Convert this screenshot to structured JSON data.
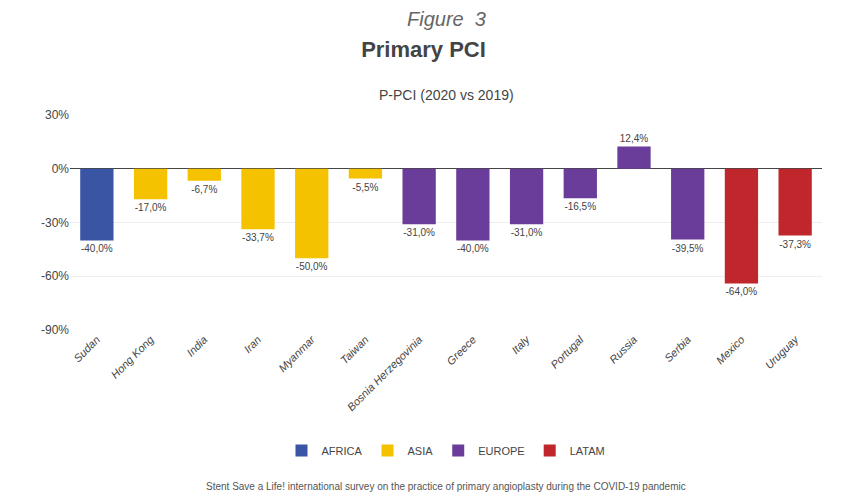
{
  "chart_data": {
    "type": "bar",
    "title": "Primary PCI",
    "subtitle": "P-PCI (2020 vs 2019)",
    "annotations": [
      "Figure  3",
      "Stent Save a Life! international survey on the practice of primary angioplasty during the COVID-19 pandemic"
    ],
    "categories": [
      "Sudan",
      "Hong Kong",
      "India",
      "Iran",
      "Myanmar",
      "Taiwan",
      "Bosnia Herzegovinia",
      "Greece",
      "Italy",
      "Portugal",
      "Russia",
      "Serbia",
      "Mexico",
      "Uruguay"
    ],
    "series": [
      {
        "name": "AFRICA",
        "color": "#3955A3",
        "values": [
          -40.0,
          null,
          null,
          null,
          null,
          null,
          null,
          null,
          null,
          null,
          null,
          null,
          null,
          null
        ],
        "value_labels": [
          "-40,0%",
          null,
          null,
          null,
          null,
          null,
          null,
          null,
          null,
          null,
          null,
          null,
          null,
          null
        ]
      },
      {
        "name": "ASIA",
        "color": "#F5C200",
        "values": [
          null,
          -17.0,
          -6.7,
          -33.7,
          -50.0,
          -5.5,
          null,
          null,
          null,
          null,
          null,
          null,
          null,
          null
        ],
        "value_labels": [
          null,
          "-17,0%",
          "-6,7%",
          "-33,7%",
          "-50,0%",
          "-5,5%",
          null,
          null,
          null,
          null,
          null,
          null,
          null,
          null
        ]
      },
      {
        "name": "EUROPE",
        "color": "#6A3D9A",
        "values": [
          null,
          null,
          null,
          null,
          null,
          null,
          -31.0,
          -40.0,
          -31.0,
          -16.5,
          12.4,
          -39.5,
          null,
          null
        ],
        "value_labels": [
          null,
          null,
          null,
          null,
          null,
          null,
          "-31,0%",
          "-40,0%",
          "-31,0%",
          "-16,5%",
          "12,4%",
          "-39,5%",
          null,
          null
        ]
      },
      {
        "name": "LATAM",
        "color": "#C0272D",
        "values": [
          null,
          null,
          null,
          null,
          null,
          null,
          null,
          null,
          null,
          null,
          null,
          null,
          -64.0,
          -37.3
        ],
        "value_labels": [
          null,
          null,
          null,
          null,
          null,
          null,
          null,
          null,
          null,
          null,
          null,
          null,
          "-64,0%",
          "-37,3%"
        ]
      }
    ],
    "ylim": [
      -90,
      30
    ],
    "yticks": [
      {
        "value": -90,
        "label": "-90%"
      },
      {
        "value": -60,
        "label": "-60%"
      },
      {
        "value": -30,
        "label": "-30%"
      },
      {
        "value": 0,
        "label": "0%"
      },
      {
        "value": 30,
        "label": "30%"
      }
    ],
    "grid": true,
    "legend": "bottom",
    "data_labels": true
  }
}
